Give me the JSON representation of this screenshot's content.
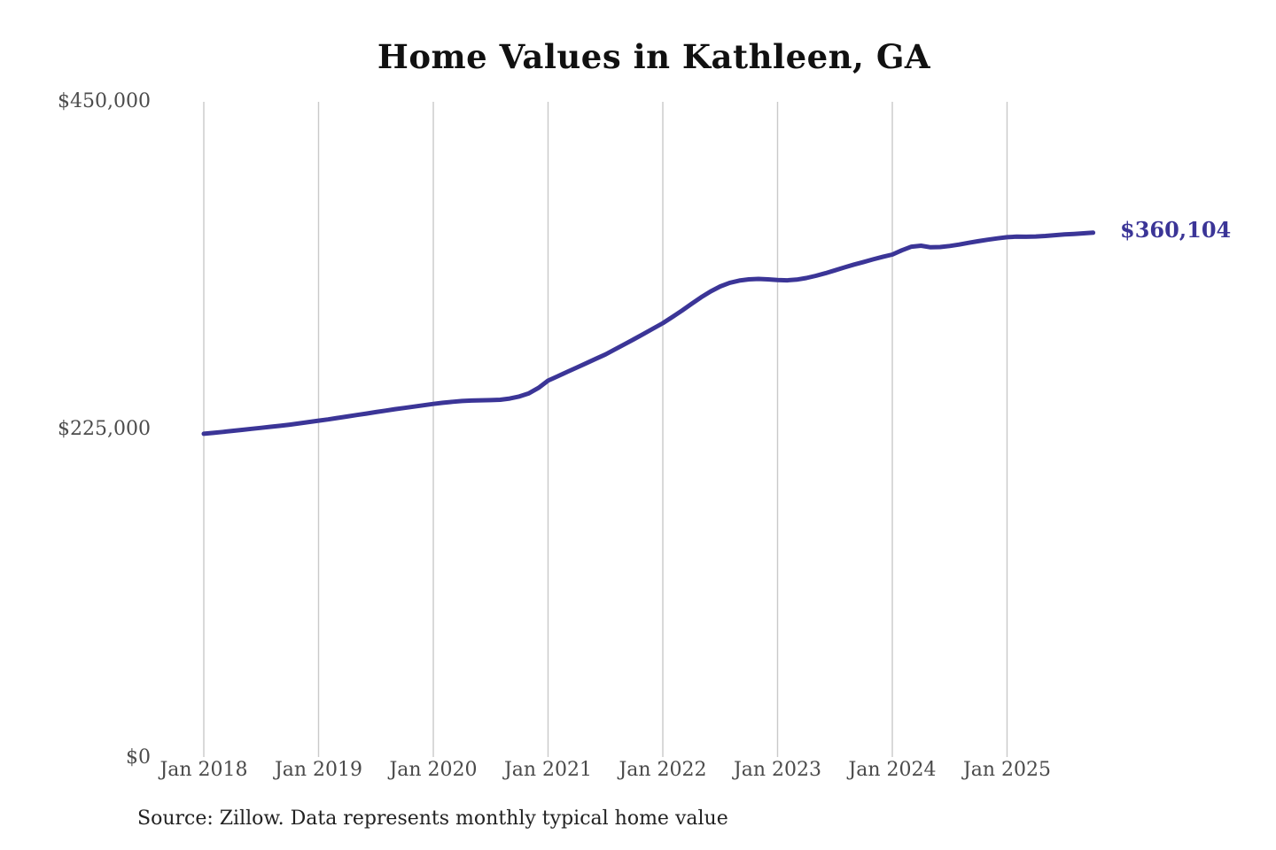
{
  "chart": {
    "title": "Home Values in Kathleen, GA",
    "source": "Source: Zillow. Data represents monthly typical home value",
    "end_label": "$360,104",
    "colors": {
      "line": "#3b3597",
      "value_label": "#3b3597",
      "grid": "#c9c9c9",
      "axis_text": "#4c4c4c",
      "title_text": "#111111",
      "source_text": "#222222",
      "background": "#ffffff"
    }
  },
  "chart_data": {
    "type": "line",
    "title": "Home Values in Kathleen, GA",
    "xlabel": "",
    "ylabel": "",
    "ylim": [
      0,
      450000
    ],
    "grid": "vertical-year-lines-only",
    "legend": "none",
    "x_tick_labels": [
      "Jan 2018",
      "Jan 2019",
      "Jan 2020",
      "Jan 2021",
      "Jan 2022",
      "Jan 2023",
      "Jan 2024",
      "Jan 2025"
    ],
    "y_tick_labels": [
      "$450,000",
      "$225,000",
      "$0"
    ],
    "y_tick_values": [
      450000,
      225000,
      0
    ],
    "x_start_month": "Jan 2018",
    "x_end_month": "Oct 2025",
    "frequency": "monthly",
    "end_value": 360104,
    "series": [
      {
        "name": "Typical home value",
        "values": [
          222000,
          222600,
          223300,
          224000,
          224700,
          225400,
          226100,
          226800,
          227500,
          228300,
          229200,
          230100,
          231000,
          231900,
          232900,
          233900,
          234900,
          235900,
          236900,
          237900,
          238900,
          239800,
          240700,
          241600,
          242500,
          243300,
          244000,
          244500,
          244800,
          245000,
          245100,
          245400,
          246200,
          247600,
          249800,
          253500,
          258500,
          261500,
          264500,
          267500,
          270500,
          273500,
          276500,
          280000,
          283500,
          287000,
          290600,
          294300,
          298000,
          302200,
          306600,
          311200,
          315700,
          319800,
          323200,
          325700,
          327200,
          328100,
          328400,
          328100,
          327600,
          327400,
          327900,
          329000,
          330500,
          332300,
          334300,
          336300,
          338200,
          340000,
          341800,
          343500,
          345100,
          348000,
          350500,
          351200,
          350100,
          350300,
          351000,
          352000,
          353200,
          354300,
          355300,
          356200,
          357000,
          357400,
          357300,
          357500,
          357900,
          358400,
          358900,
          359300,
          359700,
          360104
        ]
      }
    ]
  }
}
